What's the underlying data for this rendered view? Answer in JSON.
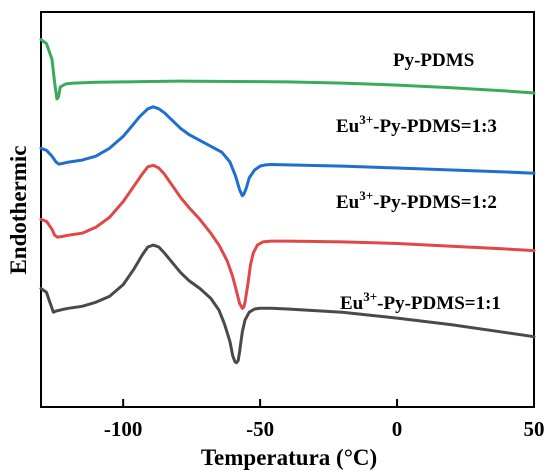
{
  "chart_data": {
    "type": "line",
    "xlabel": "Temperatura (°C)",
    "ylabel": "Endothermic",
    "xlim": [
      -130,
      50
    ],
    "xticks": [
      -100,
      -50,
      0,
      50
    ],
    "tick_labels": [
      "-100",
      "-50",
      "0",
      "50"
    ],
    "series": [
      {
        "name": "Py-PDMS",
        "label_parts": {
          "base": "Py-PDMS",
          "sup": "",
          "tail": ""
        },
        "color": "#3aaa5c",
        "x": [
          -130,
          -128,
          -126,
          -125,
          -124.2,
          -123.6,
          -123,
          -121,
          -118,
          -110,
          -100,
          -90,
          -80,
          -60,
          -40,
          -20,
          0,
          20,
          40,
          50
        ],
        "y": [
          0.93,
          0.92,
          0.88,
          0.82,
          0.78,
          0.785,
          0.81,
          0.818,
          0.82,
          0.822,
          0.823,
          0.824,
          0.825,
          0.824,
          0.823,
          0.82,
          0.815,
          0.808,
          0.8,
          0.795
        ]
      },
      {
        "name": "Eu3+-Py-PDMS=1:3",
        "label_parts": {
          "base": "Eu",
          "sup": "3+",
          "tail": "-Py-PDMS=1:3"
        },
        "color": "#1f6fd0",
        "x": [
          -130,
          -128,
          -126,
          -124.5,
          -123.5,
          -122,
          -120,
          -115,
          -110,
          -105,
          -100,
          -97,
          -94,
          -91,
          -89,
          -87,
          -85,
          -82,
          -79,
          -76,
          -72,
          -68,
          -64,
          -61,
          -59,
          -57.5,
          -56.5,
          -56,
          -55,
          -54,
          -52,
          -50,
          -48,
          -46,
          -40,
          -20,
          0,
          20,
          40,
          50
        ],
        "y": [
          0.655,
          0.65,
          0.635,
          0.62,
          0.615,
          0.617,
          0.62,
          0.625,
          0.635,
          0.655,
          0.685,
          0.71,
          0.735,
          0.755,
          0.76,
          0.755,
          0.745,
          0.725,
          0.705,
          0.69,
          0.675,
          0.66,
          0.645,
          0.62,
          0.585,
          0.55,
          0.535,
          0.538,
          0.555,
          0.58,
          0.6,
          0.61,
          0.613,
          0.614,
          0.613,
          0.61,
          0.605,
          0.6,
          0.595,
          0.592
        ]
      },
      {
        "name": "Eu3+-Py-PDMS=1:2",
        "label_parts": {
          "base": "Eu",
          "sup": "3+",
          "tail": "-Py-PDMS=1:2"
        },
        "color": "#e04848",
        "x": [
          -130,
          -128,
          -126,
          -125,
          -124,
          -122,
          -120,
          -115,
          -110,
          -105,
          -100,
          -96,
          -93,
          -91,
          -89,
          -87,
          -85,
          -82,
          -79,
          -76,
          -72,
          -68,
          -65,
          -62,
          -60,
          -58.5,
          -57.5,
          -56.5,
          -56,
          -55.5,
          -54.5,
          -53.5,
          -52.5,
          -51,
          -49,
          -46,
          -40,
          -20,
          0,
          20,
          40,
          50
        ],
        "y": [
          0.475,
          0.47,
          0.45,
          0.435,
          0.43,
          0.432,
          0.435,
          0.44,
          0.455,
          0.48,
          0.52,
          0.56,
          0.59,
          0.608,
          0.612,
          0.605,
          0.59,
          0.56,
          0.53,
          0.505,
          0.475,
          0.44,
          0.41,
          0.37,
          0.33,
          0.29,
          0.262,
          0.25,
          0.252,
          0.265,
          0.31,
          0.36,
          0.39,
          0.41,
          0.418,
          0.42,
          0.42,
          0.418,
          0.414,
          0.407,
          0.4,
          0.396
        ]
      },
      {
        "name": "Eu3+-Py-PDMS=1:1",
        "label_parts": {
          "base": "Eu",
          "sup": "3+",
          "tail": "-Py-PDMS=1:1"
        },
        "color": "#4a4a4a",
        "x": [
          -130,
          -128,
          -127,
          -126,
          -125.5,
          -124.5,
          -122,
          -120,
          -115,
          -110,
          -105,
          -100,
          -96,
          -93,
          -91,
          -89,
          -87,
          -85,
          -82,
          -79,
          -76,
          -72,
          -68,
          -65,
          -63,
          -61,
          -60,
          -59.2,
          -58.6,
          -58,
          -57.5,
          -56.5,
          -55.5,
          -54,
          -52,
          -50,
          -46,
          -40,
          -20,
          0,
          20,
          40,
          50
        ],
        "y": [
          0.3,
          0.29,
          0.27,
          0.25,
          0.24,
          0.243,
          0.247,
          0.25,
          0.255,
          0.265,
          0.28,
          0.31,
          0.35,
          0.385,
          0.405,
          0.41,
          0.405,
          0.39,
          0.365,
          0.34,
          0.32,
          0.3,
          0.275,
          0.245,
          0.21,
          0.165,
          0.13,
          0.115,
          0.112,
          0.118,
          0.14,
          0.19,
          0.22,
          0.24,
          0.248,
          0.25,
          0.25,
          0.248,
          0.24,
          0.225,
          0.208,
          0.188,
          0.178
        ]
      }
    ],
    "grid": false,
    "legend": "inline labels to the right of each curve"
  }
}
